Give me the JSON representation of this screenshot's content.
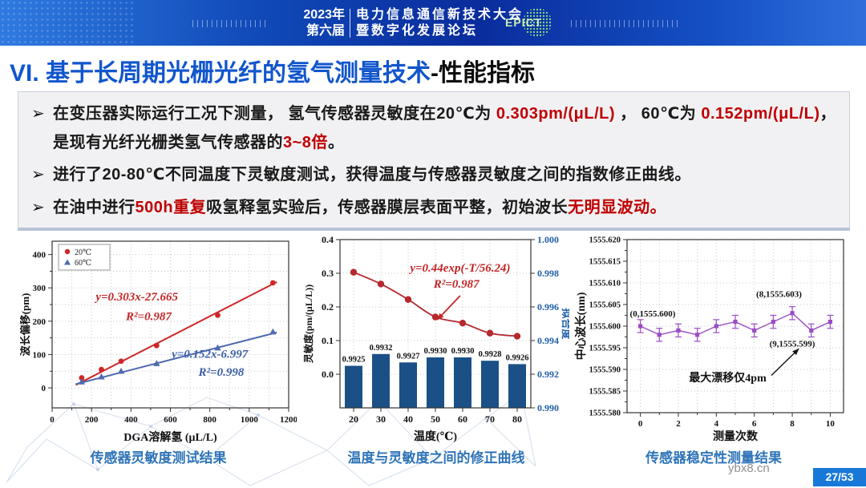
{
  "header": {
    "year": "2023年",
    "session": "第六届",
    "title_line1": "电力信息通信新技术大会",
    "title_line2": "暨数字化发展论坛",
    "logo_text": "EPICT"
  },
  "slide_title": {
    "prefix": "VI. 基于长周期光栅光纤的氢气测量技术",
    "suffix": "-性能指标"
  },
  "bullet_marker": "➢",
  "bullets": [
    {
      "segments": [
        {
          "text": "在变压器实际运行工况下测量， 氢气传感器灵敏度在20℃为 ",
          "color": "dark"
        },
        {
          "text": "0.303pm/(μL/L)",
          "color": "red"
        },
        {
          "text": " ， 60℃为 ",
          "color": "dark"
        },
        {
          "text": "0.152pm/(μL/L)",
          "color": "red"
        },
        {
          "text": "，是现有光纤光栅类氢气传感器的",
          "color": "dark"
        },
        {
          "text": "3~8倍",
          "color": "red"
        },
        {
          "text": "。",
          "color": "dark"
        }
      ]
    },
    {
      "segments": [
        {
          "text": "进行了20-80℃不同温度下灵敏度测试，获得温度与传感器灵敏度之间的指数修正曲线。",
          "color": "dark"
        }
      ]
    },
    {
      "segments": [
        {
          "text": "在油中进行",
          "color": "dark"
        },
        {
          "text": "500h重复",
          "color": "red"
        },
        {
          "text": "吸氢释氢实验后，传感器膜层表面平整，初始波长",
          "color": "dark"
        },
        {
          "text": "无明显波动。",
          "color": "red"
        }
      ]
    }
  ],
  "chart_data": [
    {
      "type": "scatter",
      "xlabel": "DGA溶解氢 (μL/L)",
      "ylabel": "波长偏移(pm)",
      "xlim": [
        0,
        1200
      ],
      "ylim": [
        -60,
        440
      ],
      "xticks": [
        0,
        200,
        400,
        600,
        800,
        1000,
        1200
      ],
      "yticks": [
        0,
        100,
        200,
        300,
        400
      ],
      "series": [
        {
          "name": "20℃",
          "marker": "circle",
          "color": "#cf2726",
          "x": [
            150,
            250,
            350,
            530,
            840,
            1120
          ],
          "y": [
            30,
            55,
            80,
            127,
            218,
            315
          ],
          "fit": {
            "slope": 0.303,
            "intercept": -27.665,
            "x0": 120,
            "x1": 1140
          }
        },
        {
          "name": "60℃",
          "marker": "triangle",
          "color": "#4f6ab0",
          "x": [
            150,
            250,
            350,
            530,
            840,
            1120
          ],
          "y": [
            18,
            33,
            50,
            73,
            120,
            168
          ],
          "fit": {
            "slope": 0.152,
            "intercept": -6.997,
            "x0": 120,
            "x1": 1140
          }
        }
      ],
      "annotations": [
        {
          "text": "y=0.303x-27.665",
          "x": 430,
          "y": 262,
          "color": "#c22525",
          "size": 15
        },
        {
          "text": "R²=0.987",
          "x": 490,
          "y": 203,
          "color": "#c22525",
          "size": 15
        },
        {
          "text": "y=0.152x-6.997",
          "x": 800,
          "y": 90,
          "color": "#3a5da8",
          "size": 15
        },
        {
          "text": "R²=0.998",
          "x": 858,
          "y": 36,
          "color": "#3a5da8",
          "size": 15
        }
      ]
    },
    {
      "type": "bar+line",
      "xlabel": "温度(℃)",
      "ylabel_left": "灵敏度(pm/(μL/L))",
      "ylabel_right": "拟合度",
      "categories": [
        "20",
        "30",
        "40",
        "50",
        "60",
        "70",
        "80"
      ],
      "bars": {
        "color": "#1a5086",
        "values": [
          0.9925,
          0.9932,
          0.9927,
          0.993,
          0.993,
          0.9928,
          0.9926
        ],
        "labels": [
          "0.9925",
          "0.9932",
          "0.9927",
          "0.9930",
          "0.9930",
          "0.9928",
          "0.9926"
        ]
      },
      "line": {
        "color": "#b5282e",
        "values": [
          0.303,
          0.268,
          0.222,
          0.17,
          0.152,
          0.122,
          0.113
        ]
      },
      "left_ticks": [
        "0.0",
        "0.1",
        "0.2",
        "0.3",
        "0.4"
      ],
      "right_ticks": [
        "0.990",
        "0.992",
        "0.994",
        "0.996",
        "0.998",
        "1.000"
      ],
      "right_lim": [
        0.99,
        1.0
      ],
      "annotation": {
        "lines": [
          "y=0.44exp(-T/56.24)",
          "R²=0.987"
        ],
        "color": "#c22525"
      }
    },
    {
      "type": "line",
      "xlabel": "测量次数",
      "ylabel": "中心波长(nm)",
      "color": "#9b4cc4",
      "x": [
        0,
        1,
        2,
        3,
        4,
        5,
        6,
        7,
        8,
        9,
        10
      ],
      "y": [
        1555.6,
        1555.598,
        1555.599,
        1555.598,
        1555.6,
        1555.601,
        1555.599,
        1555.601,
        1555.603,
        1555.599,
        1555.601
      ],
      "yerr": 0.0015,
      "ylim": [
        1555.58,
        1555.62
      ],
      "yticks": [
        "1555.580",
        "1555.585",
        "1555.590",
        "1555.595",
        "1555.600",
        "1555.605",
        "1555.610",
        "1555.615",
        "1555.620"
      ],
      "xticks": [
        0,
        2,
        4,
        6,
        8,
        10
      ],
      "annotations": [
        {
          "text": "(0,1555.600)",
          "x": -0.55,
          "y": 1555.6022,
          "anchor": "start",
          "size": 11
        },
        {
          "text": "(8,1555.603)",
          "x": 7.3,
          "y": 1555.6068,
          "anchor": "middle",
          "size": 11
        },
        {
          "text": "(9,1555.599)",
          "x": 8.0,
          "y": 1555.5953,
          "anchor": "middle",
          "size": 11
        },
        {
          "text": "最大漂移仅4pm",
          "x": 4.6,
          "y": 1555.5872,
          "anchor": "middle",
          "size": 14
        }
      ],
      "arrow": {
        "from": [
          6.9,
          1555.5886
        ],
        "to": [
          8.35,
          1555.5948
        ]
      }
    }
  ],
  "captions": [
    "传感器灵敏度测试结果",
    "温度与灵敏度之间的修正曲线",
    "传感器稳定性测量结果"
  ],
  "watermark": "ybx8.cn",
  "page_badge": "27/53",
  "colors": {
    "title_blue": "#1156cc",
    "highlight_red": "#c00000",
    "caption_blue": "#2f74b8",
    "bar_blue": "#1a5086",
    "curve_red": "#b5282e",
    "stability_purple": "#9b4cc4",
    "badge_blue": "#1878d8"
  }
}
